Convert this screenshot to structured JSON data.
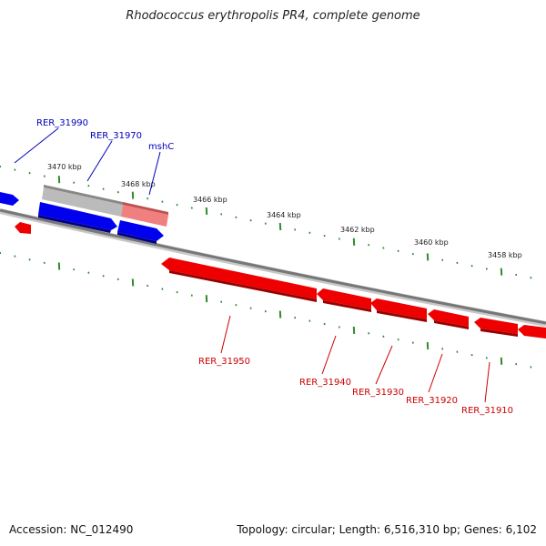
{
  "title": "Rhodococcus erythropolis PR4, complete genome",
  "footer": {
    "accession": "Accession: NC_012490",
    "topology": "Topology: circular; Length: 6,516,310 bp; Genes: 6,102"
  },
  "colors": {
    "forward_gene": "#0000ee",
    "reverse_gene": "#ee0000",
    "highlight_gene": "#bbbbbb",
    "highlight_gene_partial": "#f08080",
    "ticks": "#2e8b2e",
    "backbone": "#777777",
    "label_forward": "#0000bb",
    "label_reverse": "#cc0000"
  },
  "scale_labels": [
    "3470 kbp",
    "3468 kbp",
    "3466 kbp",
    "3464 kbp",
    "3462 kbp",
    "3460 kbp",
    "3458 kbp"
  ],
  "genes_forward": [
    {
      "label": "RER_31990"
    },
    {
      "label": "RER_31970"
    },
    {
      "label": "mshC"
    }
  ],
  "genes_reverse": [
    {
      "label": "RER_31950"
    },
    {
      "label": "RER_31940"
    },
    {
      "label": "RER_31930"
    },
    {
      "label": "RER_31920"
    },
    {
      "label": "RER_31910"
    }
  ]
}
